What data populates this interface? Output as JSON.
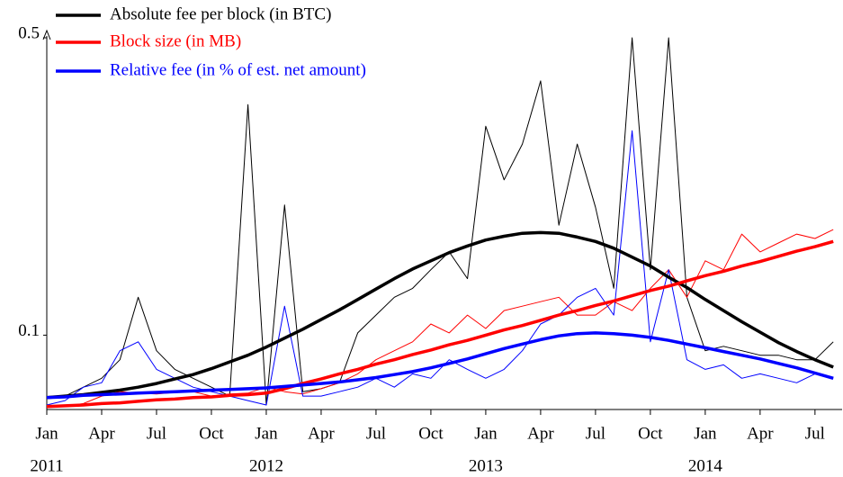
{
  "chart_data": {
    "type": "line",
    "x": [
      "2011-01",
      "2011-02",
      "2011-03",
      "2011-04",
      "2011-05",
      "2011-06",
      "2011-07",
      "2011-08",
      "2011-09",
      "2011-10",
      "2011-11",
      "2011-12",
      "2012-01",
      "2012-02",
      "2012-03",
      "2012-04",
      "2012-05",
      "2012-06",
      "2012-07",
      "2012-08",
      "2012-09",
      "2012-10",
      "2012-11",
      "2012-12",
      "2013-01",
      "2013-02",
      "2013-03",
      "2013-04",
      "2013-05",
      "2013-06",
      "2013-07",
      "2013-08",
      "2013-09",
      "2013-10",
      "2013-11",
      "2013-12",
      "2014-01",
      "2014-02",
      "2014-03",
      "2014-04",
      "2014-05",
      "2014-06",
      "2014-07",
      "2014-08"
    ],
    "series": [
      {
        "name": "Absolute fee per block (in BTC)",
        "color": "#000000",
        "values": [
          0.016,
          0.018,
          0.02,
          0.023,
          0.026,
          0.03,
          0.035,
          0.041,
          0.047,
          0.055,
          0.064,
          0.073,
          0.084,
          0.096,
          0.108,
          0.121,
          0.134,
          0.148,
          0.162,
          0.176,
          0.189,
          0.2,
          0.211,
          0.22,
          0.228,
          0.233,
          0.237,
          0.238,
          0.237,
          0.232,
          0.226,
          0.217,
          0.205,
          0.193,
          0.178,
          0.164,
          0.148,
          0.133,
          0.118,
          0.104,
          0.09,
          0.078,
          0.067,
          0.057
        ],
        "values_raw": [
          0.016,
          0.018,
          0.03,
          0.042,
          0.067,
          0.151,
          0.079,
          0.054,
          0.042,
          0.03,
          0.018,
          0.41,
          0.006,
          0.275,
          0.024,
          0.028,
          0.036,
          0.103,
          0.127,
          0.151,
          0.163,
          0.188,
          0.212,
          0.176,
          0.381,
          0.309,
          0.357,
          0.442,
          0.248,
          0.357,
          0.272,
          0.163,
          0.5,
          0.188,
          0.5,
          0.151,
          0.079,
          0.085,
          0.079,
          0.073,
          0.073,
          0.067,
          0.067,
          0.091
        ]
      },
      {
        "name": "Block size (in MB)",
        "color": "#ff0000",
        "values": [
          0.004,
          0.005,
          0.006,
          0.008,
          0.009,
          0.011,
          0.013,
          0.014,
          0.016,
          0.017,
          0.019,
          0.02,
          0.022,
          0.028,
          0.035,
          0.041,
          0.048,
          0.054,
          0.061,
          0.067,
          0.074,
          0.08,
          0.087,
          0.093,
          0.1,
          0.107,
          0.113,
          0.12,
          0.127,
          0.133,
          0.14,
          0.146,
          0.153,
          0.16,
          0.166,
          0.173,
          0.18,
          0.186,
          0.193,
          0.199,
          0.206,
          0.213,
          0.219,
          0.226
        ],
        "values_raw": [
          0.006,
          0.004,
          0.008,
          0.018,
          0.024,
          0.022,
          0.021,
          0.023,
          0.024,
          0.018,
          0.021,
          0.022,
          0.03,
          0.024,
          0.021,
          0.028,
          0.036,
          0.048,
          0.067,
          0.079,
          0.091,
          0.115,
          0.103,
          0.127,
          0.109,
          0.133,
          0.139,
          0.145,
          0.151,
          0.127,
          0.127,
          0.145,
          0.133,
          0.163,
          0.188,
          0.151,
          0.2,
          0.188,
          0.236,
          0.212,
          0.224,
          0.236,
          0.23,
          0.242
        ]
      },
      {
        "name": "Relative fee (in % of est. net amount)",
        "color": "#0000ff",
        "values": [
          0.016,
          0.017,
          0.019,
          0.02,
          0.021,
          0.022,
          0.023,
          0.024,
          0.025,
          0.026,
          0.027,
          0.028,
          0.029,
          0.031,
          0.033,
          0.035,
          0.037,
          0.04,
          0.043,
          0.047,
          0.051,
          0.056,
          0.062,
          0.068,
          0.075,
          0.082,
          0.088,
          0.094,
          0.099,
          0.102,
          0.103,
          0.102,
          0.1,
          0.097,
          0.093,
          0.088,
          0.083,
          0.078,
          0.073,
          0.068,
          0.062,
          0.056,
          0.049,
          0.042
        ],
        "values_raw": [
          0.006,
          0.012,
          0.03,
          0.036,
          0.079,
          0.091,
          0.054,
          0.042,
          0.03,
          0.024,
          0.018,
          0.012,
          0.006,
          0.139,
          0.018,
          0.018,
          0.024,
          0.03,
          0.042,
          0.03,
          0.048,
          0.042,
          0.067,
          0.054,
          0.042,
          0.054,
          0.079,
          0.115,
          0.127,
          0.151,
          0.163,
          0.127,
          0.375,
          0.091,
          0.188,
          0.067,
          0.054,
          0.06,
          0.042,
          0.048,
          0.042,
          0.036,
          0.048,
          0.042
        ]
      }
    ],
    "ylim": [
      0,
      0.5
    ],
    "yticks": [
      0.1,
      0.5
    ],
    "xticks": [
      {
        "value": "2011-01",
        "label": "Jan"
      },
      {
        "value": "2011-04",
        "label": "Apr"
      },
      {
        "value": "2011-07",
        "label": "Jul"
      },
      {
        "value": "2011-10",
        "label": "Oct"
      },
      {
        "value": "2012-01",
        "label": "Jan"
      },
      {
        "value": "2012-04",
        "label": "Apr"
      },
      {
        "value": "2012-07",
        "label": "Jul"
      },
      {
        "value": "2012-10",
        "label": "Oct"
      },
      {
        "value": "2013-01",
        "label": "Jan"
      },
      {
        "value": "2013-04",
        "label": "Apr"
      },
      {
        "value": "2013-07",
        "label": "Jul"
      },
      {
        "value": "2013-10",
        "label": "Oct"
      },
      {
        "value": "2014-01",
        "label": "Jan"
      },
      {
        "value": "2014-04",
        "label": "Apr"
      },
      {
        "value": "2014-07",
        "label": "Jul"
      }
    ],
    "xtick_years": [
      {
        "value": "2011-01",
        "label": "2011"
      },
      {
        "value": "2012-01",
        "label": "2012"
      },
      {
        "value": "2013-01",
        "label": "2013"
      },
      {
        "value": "2014-01",
        "label": "2014"
      }
    ],
    "legend": "top-left"
  }
}
